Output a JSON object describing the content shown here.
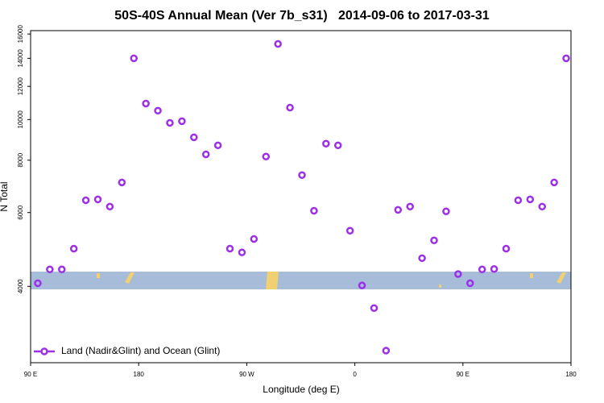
{
  "chart_data": {
    "type": "scatter",
    "title": "50S-40S Annual Mean (Ver 7b_s31)   2014-09-06 to 2017-03-31",
    "x_label": "Longitude (deg E)",
    "y_label": "N Total",
    "log_y": true,
    "legend": "lower left",
    "xlim": [
      90,
      540
    ],
    "ylim": [
      2630,
      16300
    ],
    "xticks": [
      {
        "value": 90,
        "label": "90 E"
      },
      180,
      {
        "value": 270,
        "label": "90 W"
      },
      {
        "value": 360,
        "label": "0"
      },
      {
        "value": 450,
        "label": "90 E"
      },
      {
        "value": 540,
        "label": "180"
      }
    ],
    "yticks": [
      4000,
      6000,
      8000,
      10000,
      12000,
      14000,
      16000
    ],
    "series": [
      {
        "name": "Land (Nadir&Glint) and Ocean (Glint)",
        "color": "#9b30e8",
        "x": [
          96,
          106,
          116,
          126,
          136,
          146,
          156,
          166,
          176,
          186,
          196,
          206,
          216,
          226,
          236,
          246,
          256,
          266,
          276,
          286,
          296,
          306,
          316,
          326,
          336,
          346,
          356,
          366,
          376,
          386,
          396,
          406,
          416,
          426,
          436,
          446,
          456,
          466,
          476,
          486,
          496,
          506,
          516,
          526,
          536
        ],
        "values": [
          4070,
          4390,
          4390,
          4920,
          6420,
          6450,
          6200,
          7080,
          14000,
          10920,
          10500,
          9820,
          9910,
          9070,
          8260,
          8680,
          4920,
          4820,
          5190,
          8160,
          15150,
          10680,
          7370,
          6060,
          8760,
          8680,
          5430,
          4020,
          3550,
          2810,
          6090,
          6200,
          4670,
          5150,
          6040,
          4280,
          4070,
          4390,
          4400,
          4920,
          6420,
          6450,
          6200,
          7080,
          14000
        ]
      }
    ]
  }
}
